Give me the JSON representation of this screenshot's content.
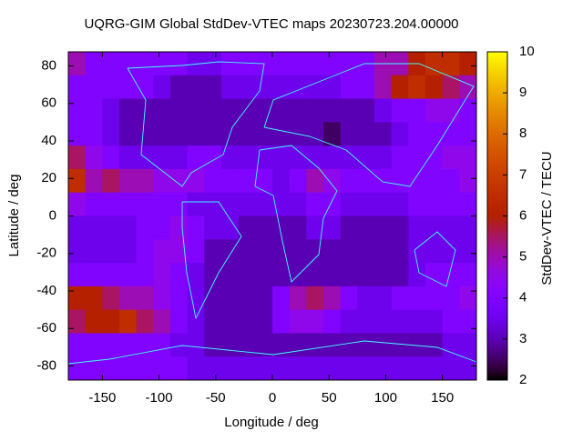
{
  "chart_data": {
    "type": "heatmap",
    "title": "UQRG-GIM Global StdDev-VTEC maps 20230723.204.00000",
    "x_label": "Longitude / deg",
    "y_label": "Latitude / deg",
    "colorbar_label": "StdDev-VTEC / TECU",
    "colormap": "gnuplot",
    "xlim": [
      -180,
      180
    ],
    "ylim": [
      -87.5,
      87.5
    ],
    "xticks": [
      -150,
      -100,
      -50,
      0,
      50,
      100,
      150
    ],
    "yticks": [
      -80,
      -60,
      -40,
      -20,
      0,
      20,
      40,
      60,
      80
    ],
    "cblim": [
      2,
      10
    ],
    "cbticks": [
      2,
      3,
      4,
      5,
      6,
      7,
      8,
      9,
      10
    ],
    "xbins": [
      -180,
      -165,
      -150,
      -135,
      -120,
      -105,
      -90,
      -75,
      -60,
      -45,
      -30,
      -15,
      0,
      15,
      30,
      45,
      60,
      75,
      90,
      105,
      120,
      135,
      150,
      165,
      180
    ],
    "ybins": [
      87.5,
      75,
      62.5,
      50,
      37.5,
      25,
      12.5,
      0,
      -12.5,
      -25,
      -37.5,
      -50,
      -62.5,
      -75,
      -87.5
    ],
    "z": [
      [
        5,
        4,
        4,
        4,
        4,
        4,
        4,
        3.5,
        3.5,
        4,
        4,
        4,
        4,
        4,
        4,
        4,
        4,
        4,
        5,
        5,
        6,
        6.5,
        6.5,
        6
      ],
      [
        4,
        4,
        4,
        4,
        4,
        3.5,
        3,
        3,
        3,
        3.5,
        3.5,
        3.5,
        3.5,
        3.5,
        3.5,
        3.5,
        4,
        4,
        5,
        6,
        6.5,
        6,
        5.5,
        5
      ],
      [
        4,
        4,
        3.5,
        3,
        3,
        3,
        3,
        3,
        3,
        3,
        3,
        3,
        3,
        3,
        3,
        3,
        3,
        3,
        3.5,
        4,
        4,
        4.5,
        4.5,
        4
      ],
      [
        4,
        4,
        3.5,
        3,
        3,
        3,
        3,
        3,
        3,
        3,
        3,
        3,
        3,
        3,
        3,
        2.5,
        3,
        3,
        3,
        3.5,
        4,
        4,
        4,
        4
      ],
      [
        5.5,
        4.5,
        4,
        3.5,
        3.5,
        3.5,
        3.5,
        4,
        4,
        3.5,
        3.5,
        3.5,
        3.5,
        3.5,
        3.5,
        3.5,
        3.5,
        3.5,
        3.5,
        4,
        4,
        4,
        4.5,
        4.5
      ],
      [
        6.5,
        5,
        5.5,
        5,
        5,
        4.5,
        4.5,
        4.5,
        4,
        4,
        4,
        4,
        3.5,
        4,
        5,
        4.5,
        4,
        4,
        4,
        4,
        4,
        4,
        4,
        4.5
      ],
      [
        4.5,
        4,
        4,
        4,
        4,
        4,
        4,
        3.5,
        3.5,
        3.5,
        3.5,
        3.5,
        3.5,
        3.5,
        4,
        4,
        3.5,
        3.5,
        3.5,
        3.5,
        4,
        4,
        4,
        4
      ],
      [
        3.5,
        3.5,
        3.5,
        3.5,
        4,
        4,
        4.5,
        4,
        3.5,
        3.5,
        3,
        3,
        3,
        3,
        3.5,
        3.5,
        3,
        3,
        3,
        3,
        3.5,
        3.5,
        3.5,
        3.5
      ],
      [
        3.5,
        3.5,
        3.5,
        3.5,
        4,
        4.5,
        4.5,
        4,
        3,
        3,
        3,
        3,
        3,
        3,
        3,
        3,
        3,
        3,
        3,
        3,
        3.5,
        3.5,
        3.5,
        3.5
      ],
      [
        4,
        4,
        4,
        4,
        4,
        4.5,
        4,
        3.5,
        3,
        3,
        3,
        3,
        3,
        3,
        3,
        3,
        3,
        3,
        3,
        3,
        3.5,
        4,
        4,
        4
      ],
      [
        6,
        6,
        5.5,
        5,
        5,
        4.5,
        4,
        3.5,
        3,
        3,
        3,
        3,
        4,
        5,
        5.5,
        5,
        4,
        3.5,
        3.5,
        4,
        4,
        4,
        4,
        4.5
      ],
      [
        5.5,
        6,
        6,
        6.5,
        5.5,
        5,
        4,
        3.5,
        3,
        3,
        3,
        3,
        4,
        4.5,
        4.5,
        4,
        3.5,
        3.5,
        3.5,
        3.5,
        3.5,
        3.5,
        4,
        4
      ],
      [
        4,
        4,
        4,
        4,
        4,
        4,
        3.5,
        3.5,
        3,
        3,
        3,
        3,
        3,
        3,
        3,
        3,
        3,
        3,
        3,
        3,
        3,
        3,
        3.5,
        3.5
      ],
      [
        4,
        4,
        4,
        4,
        4,
        4,
        4,
        3.5,
        3.5,
        3.5,
        3.5,
        3.5,
        3.5,
        3.5,
        3.5,
        3.5,
        3.5,
        3.5,
        3.5,
        3.5,
        3.5,
        3.5,
        3.5,
        3.5
      ]
    ]
  }
}
